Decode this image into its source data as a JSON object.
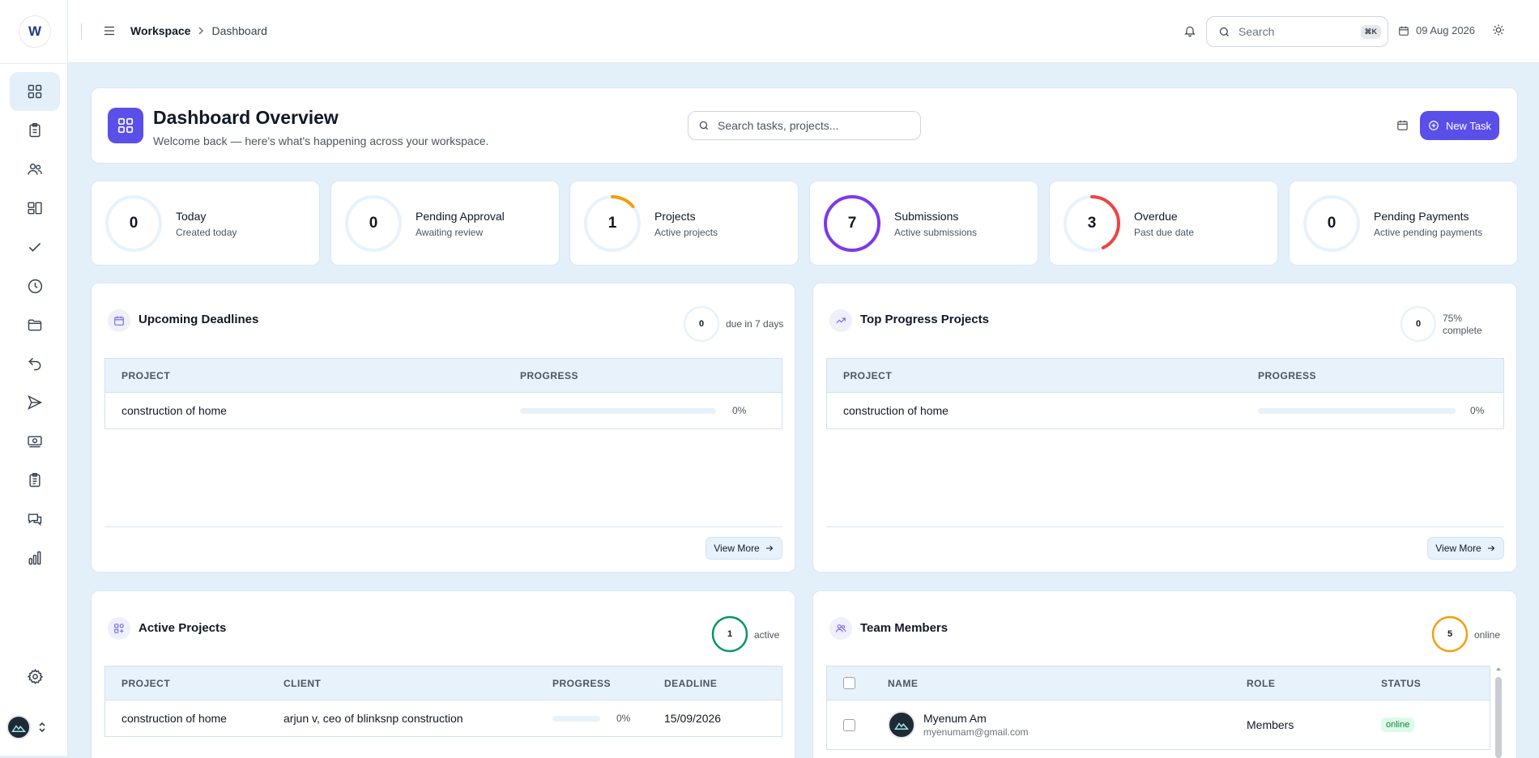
{
  "app": {
    "logo_letter": "W",
    "breadcrumb": {
      "root": "Workspace",
      "current": "Dashboard"
    },
    "search": {
      "placeholder": "Search",
      "shortcut": "⌘K"
    },
    "date": "09 Aug 2026"
  },
  "sidebar": {
    "items": [
      {
        "name": "dashboard",
        "icon": "grid-icon",
        "active": true
      },
      {
        "name": "tasks",
        "icon": "clipboard-icon"
      },
      {
        "name": "team",
        "icon": "users-icon"
      },
      {
        "name": "boards",
        "icon": "layout-icon"
      },
      {
        "name": "approvals",
        "icon": "check-icon"
      },
      {
        "name": "timesheets",
        "icon": "clock-icon"
      },
      {
        "name": "files",
        "icon": "folder-icon"
      },
      {
        "name": "returns",
        "icon": "undo-icon"
      },
      {
        "name": "submissions",
        "icon": "send-icon"
      },
      {
        "name": "payments",
        "icon": "money-icon"
      },
      {
        "name": "reports",
        "icon": "clipboard-list-icon"
      },
      {
        "name": "messages",
        "icon": "chat-icon"
      },
      {
        "name": "analytics",
        "icon": "bar-chart-icon"
      }
    ],
    "settings_icon": "gear-icon"
  },
  "overview": {
    "title": "Dashboard Overview",
    "subtitle": "Welcome back — here's what's happening across your workspace.",
    "search_placeholder": "Search tasks, projects...",
    "new_task_label": "New Task"
  },
  "stats": [
    {
      "value": "0",
      "label": "Today",
      "sub": "Created today",
      "fraction": 0,
      "color": "#3b82f6"
    },
    {
      "value": "0",
      "label": "Pending Approval",
      "sub": "Awaiting review",
      "fraction": 0,
      "color": "#3b82f6"
    },
    {
      "value": "1",
      "label": "Projects",
      "sub": "Active projects",
      "fraction": 0.14,
      "color": "#f59e0b"
    },
    {
      "value": "7",
      "label": "Submissions",
      "sub": "Active submissions",
      "fraction": 1,
      "color": "#7c3aed"
    },
    {
      "value": "3",
      "label": "Overdue",
      "sub": "Past due date",
      "fraction": 0.43,
      "color": "#ef4444"
    },
    {
      "value": "0",
      "label": "Pending Payments",
      "sub": "Active pending payments",
      "fraction": 0,
      "color": "#3b82f6"
    }
  ],
  "deadlines": {
    "title": "Upcoming Deadlines",
    "count": "0",
    "count_label": "due in 7 days",
    "columns": [
      "PROJECT",
      "PROGRESS"
    ],
    "rows": [
      {
        "project": "construction of home",
        "progress": 0,
        "progress_label": "0%"
      }
    ],
    "view_more": "View More"
  },
  "top_progress": {
    "title": "Top Progress Projects",
    "count": "0",
    "count_label_1": "75%",
    "count_label_2": "complete",
    "columns": [
      "PROJECT",
      "PROGRESS"
    ],
    "rows": [
      {
        "project": "construction of home",
        "progress": 0,
        "progress_label": "0%"
      }
    ],
    "view_more": "View More"
  },
  "active_projects": {
    "title": "Active Projects",
    "count": "1",
    "count_label": "active",
    "columns": [
      "PROJECT",
      "CLIENT",
      "PROGRESS",
      "DEADLINE"
    ],
    "rows": [
      {
        "project": "construction of home",
        "client": "arjun v, ceo of blinksnp construction",
        "progress": 0,
        "progress_label": "0%",
        "deadline": "15/09/2026"
      }
    ]
  },
  "team_members": {
    "title": "Team Members",
    "count": "5",
    "count_label": "online",
    "columns": [
      "NAME",
      "ROLE",
      "STATUS"
    ],
    "rows": [
      {
        "name": "Myenum Am",
        "email": "myenumam@gmail.com",
        "role": "Members",
        "status": "online"
      }
    ]
  }
}
